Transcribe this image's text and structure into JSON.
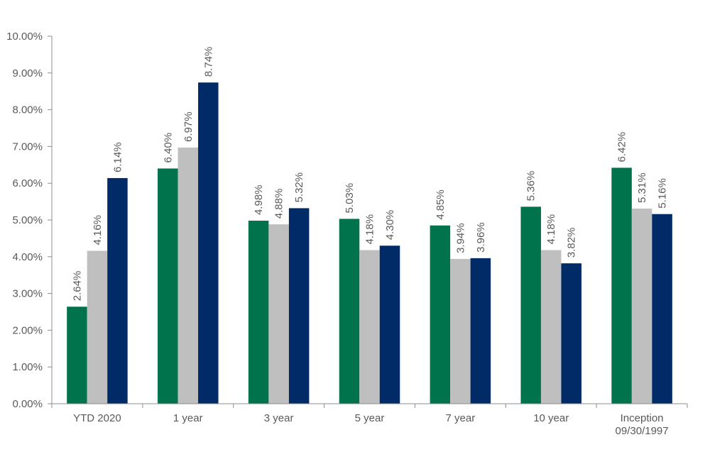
{
  "chart_data": {
    "type": "bar",
    "title": "",
    "xlabel": "",
    "ylabel": "",
    "ylim": [
      0,
      10
    ],
    "yticks": [
      0,
      1,
      2,
      3,
      4,
      5,
      6,
      7,
      8,
      9,
      10
    ],
    "ytick_labels": [
      "0.00%",
      "1.00%",
      "2.00%",
      "3.00%",
      "4.00%",
      "5.00%",
      "6.00%",
      "7.00%",
      "8.00%",
      "9.00%",
      "10.00%"
    ],
    "categories": [
      [
        "YTD 2020"
      ],
      [
        "1 year"
      ],
      [
        "3 year"
      ],
      [
        "5 year"
      ],
      [
        "7 year"
      ],
      [
        "10 year"
      ],
      [
        "Inception",
        "09/30/1997"
      ]
    ],
    "series": [
      {
        "name": "Series 1",
        "color": "#00734d",
        "values": [
          2.64,
          6.4,
          4.98,
          5.03,
          4.85,
          5.36,
          6.42
        ],
        "labels": [
          "2.64%",
          "6.40%",
          "4.98%",
          "5.03%",
          "4.85%",
          "5.36%",
          "6.42%"
        ]
      },
      {
        "name": "Series 2",
        "color": "#bfbfbf",
        "values": [
          4.16,
          6.97,
          4.88,
          4.18,
          3.94,
          4.18,
          5.31
        ],
        "labels": [
          "4.16%",
          "6.97%",
          "4.88%",
          "4.18%",
          "3.94%",
          "4.18%",
          "5.31%"
        ]
      },
      {
        "name": "Series 3",
        "color": "#002b66",
        "values": [
          6.14,
          8.74,
          5.32,
          4.3,
          3.96,
          3.82,
          5.16
        ],
        "labels": [
          "6.14%",
          "8.74%",
          "5.32%",
          "4.30%",
          "3.96%",
          "3.82%",
          "5.16%"
        ]
      }
    ],
    "legend": "none",
    "grid": false
  }
}
